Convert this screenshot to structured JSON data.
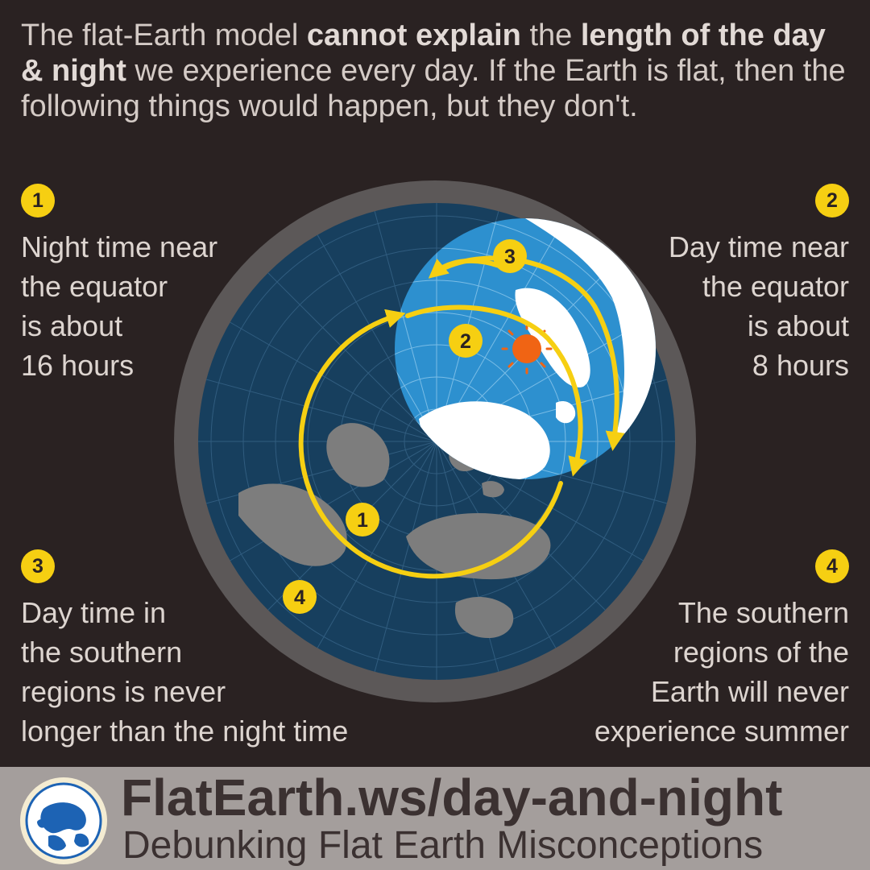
{
  "intro": {
    "part1": "The flat-Earth model ",
    "bold1": "cannot explain",
    "part2": " the ",
    "bold2": "length of the day & night",
    "part3": " we experience every day. If the Earth is flat, then the following things would happen, but they don't."
  },
  "points": [
    {
      "number": "1",
      "lines": [
        "Night time near",
        "the equator",
        "is about",
        "16 hours"
      ]
    },
    {
      "number": "2",
      "lines": [
        "Day time near",
        "the equator",
        "is about",
        "8 hours"
      ]
    },
    {
      "number": "3",
      "lines": [
        "Day time in",
        "the southern",
        "regions is never",
        "longer than the night time"
      ]
    },
    {
      "number": "4",
      "lines": [
        "The southern",
        "regions of the",
        "Earth will never",
        "experience summer"
      ]
    }
  ],
  "diagram_markers": [
    "1",
    "2",
    "3",
    "4"
  ],
  "footer": {
    "url": "FlatEarth.ws/day-and-night",
    "tagline": "Debunking Flat Earth Misconceptions"
  },
  "colors": {
    "background": "#2a2222",
    "night_disc": "#173f5e",
    "day_circle": "#2d90cf",
    "land_dark": "#7d7d7d",
    "sun": "#f06414",
    "arrow": "#f6cf12",
    "footer_bg": "#a49e9c"
  },
  "icons": [
    "sun-icon",
    "flat-earth-logo-icon"
  ]
}
